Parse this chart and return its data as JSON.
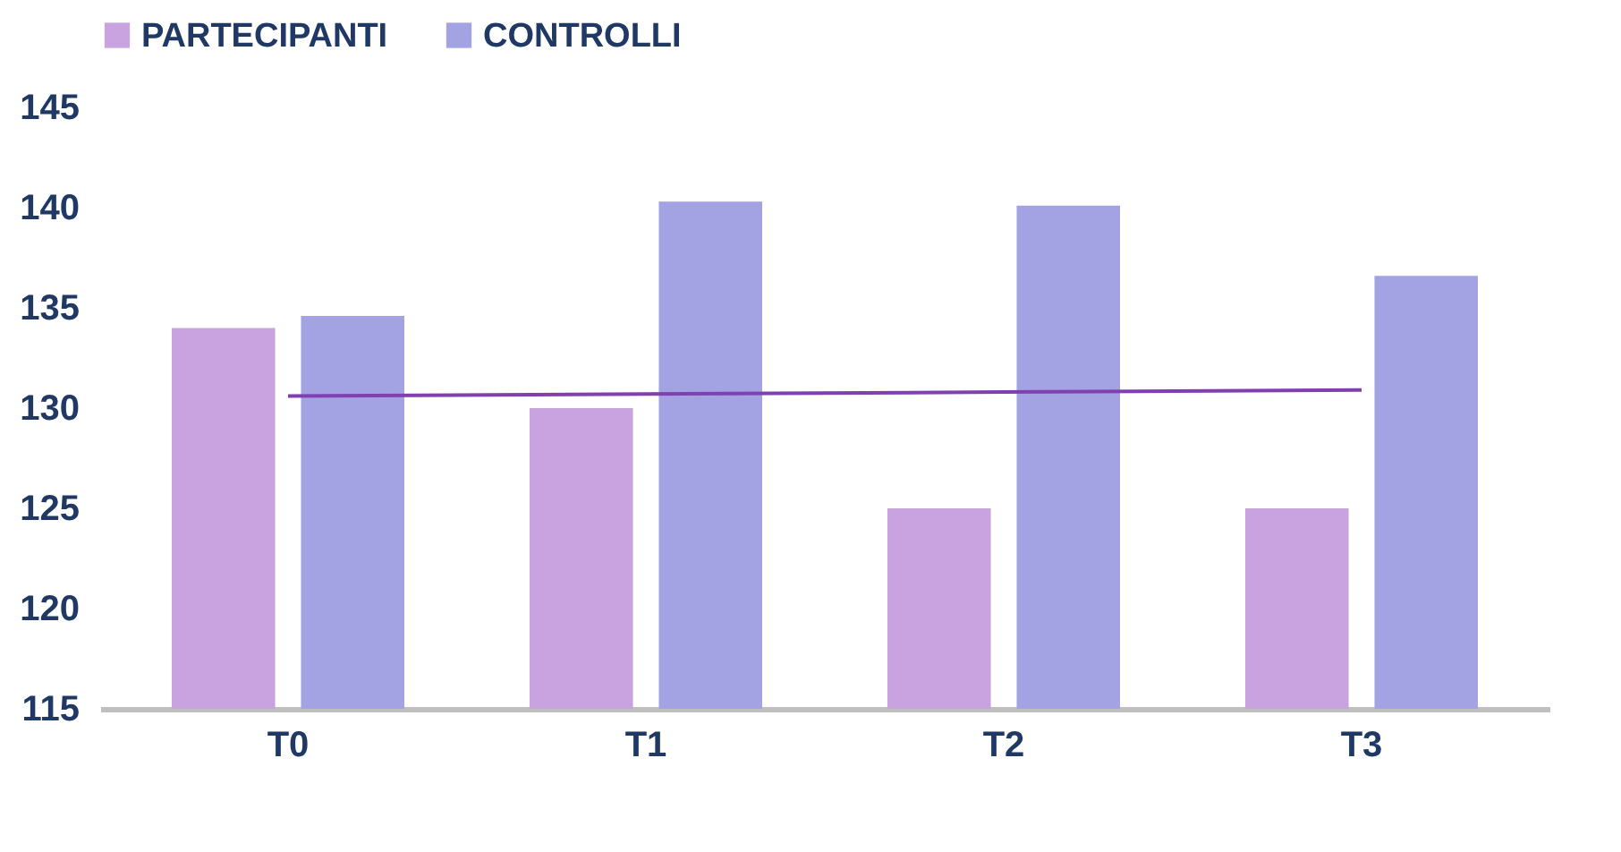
{
  "chart_data": {
    "type": "bar",
    "categories": [
      "T0",
      "T1",
      "T2",
      "T3"
    ],
    "series": [
      {
        "name": "PARTECIPANTI",
        "color": "#c9a3e0",
        "values": [
          134.0,
          130.0,
          125.0,
          125.0
        ]
      },
      {
        "name": "CONTROLLI",
        "color": "#a3a3e3",
        "values": [
          134.6,
          140.3,
          140.1,
          136.6
        ]
      },
      {
        "type": "line",
        "color": "#8040b0",
        "values": [
          130.6,
          130.7,
          130.8,
          130.9
        ]
      }
    ],
    "ylim": [
      115,
      145
    ],
    "yticks": [
      115,
      120,
      125,
      130,
      135,
      140,
      145
    ],
    "grid": false,
    "legend": "top"
  }
}
